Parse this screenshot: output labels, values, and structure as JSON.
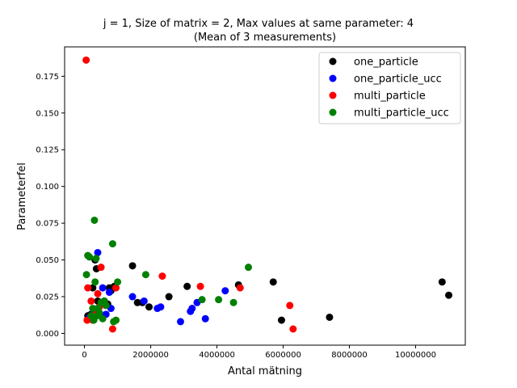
{
  "chart_data": {
    "type": "scatter",
    "title": "j = 1, Size of matrix = 2, Max values at same parameter: 4",
    "subtitle": "(Mean of 3 measurements)",
    "xlabel": "Antal mätning",
    "ylabel": "Parameterfel",
    "xlim": [
      -600000,
      11500000
    ],
    "ylim": [
      -0.008,
      0.195
    ],
    "xticks": [
      0,
      2000000,
      4000000,
      6000000,
      8000000,
      10000000
    ],
    "xtick_labels": [
      "0",
      "2000000",
      "4000000",
      "6000000",
      "8000000",
      "10000000"
    ],
    "yticks": [
      0.0,
      0.025,
      0.05,
      0.075,
      0.1,
      0.125,
      0.15,
      0.175
    ],
    "ytick_labels": [
      "0.000",
      "0.025",
      "0.050",
      "0.075",
      "0.100",
      "0.125",
      "0.150",
      "0.175"
    ],
    "grid": false,
    "legend_position": "top-right",
    "series": [
      {
        "name": "one_particle",
        "color": "#000000",
        "points": [
          [
            100000,
            0.012
          ],
          [
            200000,
            0.013
          ],
          [
            250000,
            0.031
          ],
          [
            320000,
            0.05
          ],
          [
            360000,
            0.044
          ],
          [
            400000,
            0.022
          ],
          [
            450000,
            0.013
          ],
          [
            500000,
            0.02
          ],
          [
            600000,
            0.022
          ],
          [
            700000,
            0.02
          ],
          [
            750000,
            0.031
          ],
          [
            800000,
            0.029
          ],
          [
            900000,
            0.032
          ],
          [
            1450000,
            0.046
          ],
          [
            1600000,
            0.021
          ],
          [
            1750000,
            0.021
          ],
          [
            1950000,
            0.018
          ],
          [
            2550000,
            0.025
          ],
          [
            3100000,
            0.032
          ],
          [
            4650000,
            0.033
          ],
          [
            5700000,
            0.035
          ],
          [
            5950000,
            0.009
          ],
          [
            7400000,
            0.011
          ],
          [
            10800000,
            0.035
          ],
          [
            11000000,
            0.026
          ]
        ]
      },
      {
        "name": "one_particle_ucc",
        "color": "#0000ff",
        "points": [
          [
            150000,
            0.011
          ],
          [
            250000,
            0.013
          ],
          [
            400000,
            0.055
          ],
          [
            550000,
            0.031
          ],
          [
            650000,
            0.013
          ],
          [
            750000,
            0.028
          ],
          [
            800000,
            0.017
          ],
          [
            1450000,
            0.025
          ],
          [
            1800000,
            0.022
          ],
          [
            2200000,
            0.017
          ],
          [
            2300000,
            0.018
          ],
          [
            2900000,
            0.008
          ],
          [
            3200000,
            0.015
          ],
          [
            3250000,
            0.017
          ],
          [
            3400000,
            0.021
          ],
          [
            3650000,
            0.01
          ],
          [
            4250000,
            0.029
          ]
        ]
      },
      {
        "name": "multi_particle",
        "color": "#ff0000",
        "points": [
          [
            50000,
            0.186
          ],
          [
            80000,
            0.009
          ],
          [
            100000,
            0.031
          ],
          [
            200000,
            0.022
          ],
          [
            250000,
            0.009
          ],
          [
            300000,
            0.011
          ],
          [
            350000,
            0.015
          ],
          [
            400000,
            0.027
          ],
          [
            450000,
            0.018
          ],
          [
            500000,
            0.045
          ],
          [
            850000,
            0.003
          ],
          [
            950000,
            0.031
          ],
          [
            2350000,
            0.039
          ],
          [
            3500000,
            0.032
          ],
          [
            4700000,
            0.031
          ],
          [
            6200000,
            0.019
          ],
          [
            6300000,
            0.003
          ]
        ]
      },
      {
        "name": "multi_particle_ucc",
        "color": "#008000",
        "points": [
          [
            60000,
            0.04
          ],
          [
            100000,
            0.053
          ],
          [
            150000,
            0.052
          ],
          [
            200000,
            0.012
          ],
          [
            250000,
            0.017
          ],
          [
            280000,
            0.009
          ],
          [
            300000,
            0.077
          ],
          [
            320000,
            0.035
          ],
          [
            350000,
            0.051
          ],
          [
            380000,
            0.012
          ],
          [
            400000,
            0.017
          ],
          [
            450000,
            0.014
          ],
          [
            500000,
            0.021
          ],
          [
            550000,
            0.01
          ],
          [
            600000,
            0.022
          ],
          [
            650000,
            0.019
          ],
          [
            850000,
            0.061
          ],
          [
            880000,
            0.008
          ],
          [
            950000,
            0.009
          ],
          [
            1000000,
            0.035
          ],
          [
            1850000,
            0.04
          ],
          [
            3550000,
            0.023
          ],
          [
            4050000,
            0.023
          ],
          [
            4500000,
            0.021
          ],
          [
            4950000,
            0.045
          ]
        ]
      }
    ]
  }
}
